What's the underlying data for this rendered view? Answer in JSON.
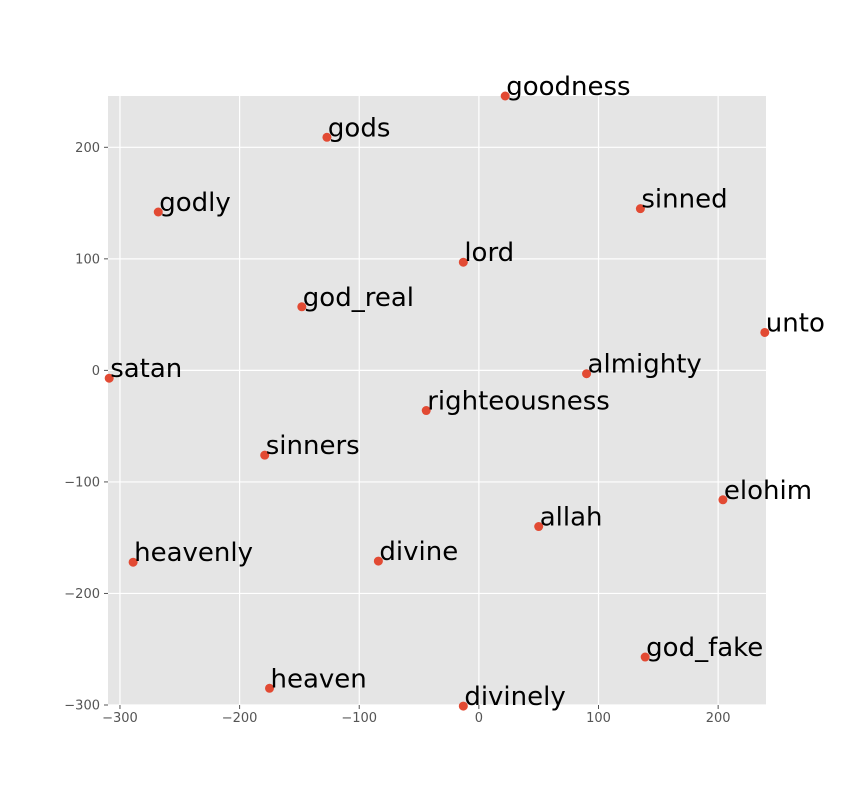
{
  "chart_data": {
    "type": "scatter",
    "title": "",
    "xlabel": "",
    "ylabel": "",
    "xlim": [
      -310,
      240
    ],
    "ylim": [
      -300,
      246
    ],
    "grid": true,
    "background": "#e5e5e5",
    "grid_color": "#ffffff",
    "marker_color": "#e24a33",
    "xticks": [
      -300,
      -200,
      -100,
      0,
      100,
      200
    ],
    "yticks": [
      -300,
      -200,
      -100,
      0,
      100,
      200
    ],
    "xtick_labels": [
      "−300",
      "−200",
      "−100",
      "0",
      "100",
      "200"
    ],
    "ytick_labels": [
      "−300",
      "−200",
      "−100",
      "0",
      "100",
      "200"
    ],
    "points": [
      {
        "label": "goodness",
        "x": 22,
        "y": 246
      },
      {
        "label": "gods",
        "x": -127,
        "y": 209
      },
      {
        "label": "godly",
        "x": -268,
        "y": 142
      },
      {
        "label": "sinned",
        "x": 135,
        "y": 145
      },
      {
        "label": "lord",
        "x": -13,
        "y": 97
      },
      {
        "label": "god_real",
        "x": -148,
        "y": 57
      },
      {
        "label": "unto",
        "x": 239,
        "y": 34
      },
      {
        "label": "satan",
        "x": -309,
        "y": -7
      },
      {
        "label": "almighty",
        "x": 90,
        "y": -3
      },
      {
        "label": "righteousness",
        "x": -44,
        "y": -36
      },
      {
        "label": "sinners",
        "x": -179,
        "y": -76
      },
      {
        "label": "elohim",
        "x": 204,
        "y": -116
      },
      {
        "label": "allah",
        "x": 50,
        "y": -140
      },
      {
        "label": "heavenly",
        "x": -289,
        "y": -172
      },
      {
        "label": "divine",
        "x": -84,
        "y": -171
      },
      {
        "label": "god_fake",
        "x": 139,
        "y": -257
      },
      {
        "label": "heaven",
        "x": -175,
        "y": -285
      },
      {
        "label": "divinely",
        "x": -13,
        "y": -301
      }
    ]
  }
}
